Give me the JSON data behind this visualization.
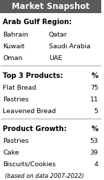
{
  "title": "Market Snapshot",
  "title_bg": "#5a5a5a",
  "title_color": "#ffffff",
  "region_header": "Arab Gulf Region:",
  "countries_col1": [
    "Bahrain",
    "Kuwait",
    "Oman"
  ],
  "countries_col2": [
    "Qatar",
    "Saudi Arabia",
    "UAE"
  ],
  "products_header": "Top 3 Products:",
  "products_pct_label": "%",
  "products": [
    [
      "Flat Bread",
      "75"
    ],
    [
      "Pastries",
      "11"
    ],
    [
      "Leavened Bread",
      "5"
    ]
  ],
  "growth_header": "Product Growth:",
  "growth_pct_label": "%",
  "growth": [
    [
      "Pastries",
      "53"
    ],
    [
      "Cake",
      "39"
    ],
    [
      "Biscuits/Cookies",
      "4"
    ]
  ],
  "footnote": "(based on data 2007-2022)",
  "bg_color": "#ffffff",
  "header_bold_color": "#000000",
  "text_color": "#000000",
  "separator_color": "#aaaaaa"
}
